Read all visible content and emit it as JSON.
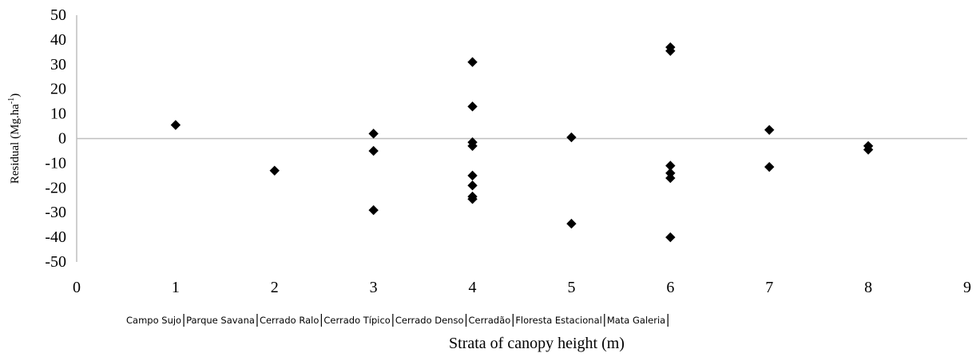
{
  "chart_data": {
    "type": "scatter",
    "title": "",
    "xlabel": "Strata of canopy height (m)",
    "ylabel": "Residual (Mg.ha-1)",
    "ylabel_main": "Residual (Mg.ha",
    "ylabel_sup": "-1",
    "ylabel_close": ")",
    "xlim": [
      0,
      9
    ],
    "ylim": [
      -50,
      50
    ],
    "xticks": [
      0,
      1,
      2,
      3,
      4,
      5,
      6,
      7,
      8,
      9
    ],
    "yticks": [
      50,
      40,
      30,
      20,
      10,
      0,
      -10,
      -20,
      -30,
      -40,
      -50
    ],
    "grid": false,
    "marker": "diamond",
    "marker_color": "#000000",
    "strata_labels": [
      "Campo Sujo",
      "Parque Savana",
      "Cerrado Ralo",
      "Cerrado Típico",
      "Cerrado Denso",
      "Cerradão",
      "Floresta Estacional",
      "Mata Galeria"
    ],
    "series": [
      {
        "points": [
          {
            "x": 1,
            "y": 5.5
          },
          {
            "x": 2,
            "y": -13
          },
          {
            "x": 3,
            "y": 2
          },
          {
            "x": 3,
            "y": -5
          },
          {
            "x": 3,
            "y": -29
          },
          {
            "x": 4,
            "y": 31
          },
          {
            "x": 4,
            "y": 13
          },
          {
            "x": 4,
            "y": -1.5
          },
          {
            "x": 4,
            "y": -3
          },
          {
            "x": 4,
            "y": -15
          },
          {
            "x": 4,
            "y": -19
          },
          {
            "x": 4,
            "y": -23.5
          },
          {
            "x": 4,
            "y": -24.5
          },
          {
            "x": 5,
            "y": 0.5
          },
          {
            "x": 5,
            "y": -34.5
          },
          {
            "x": 6,
            "y": 37
          },
          {
            "x": 6,
            "y": 35.5
          },
          {
            "x": 6,
            "y": -11
          },
          {
            "x": 6,
            "y": -14
          },
          {
            "x": 6,
            "y": -16
          },
          {
            "x": 6,
            "y": -40
          },
          {
            "x": 7,
            "y": 3.5
          },
          {
            "x": 7,
            "y": -11.5
          },
          {
            "x": 8,
            "y": -3
          },
          {
            "x": 8,
            "y": -4.5
          }
        ]
      }
    ]
  }
}
